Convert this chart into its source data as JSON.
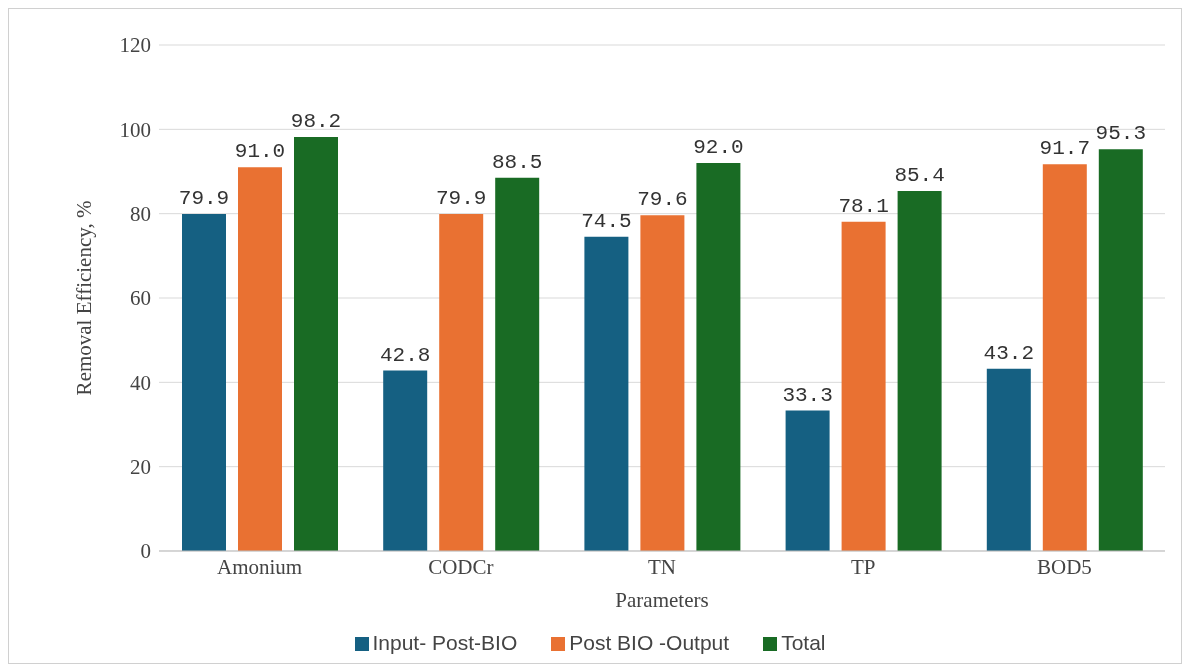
{
  "chart_data": {
    "type": "bar",
    "xlabel": "Parameters",
    "ylabel": "Removal Efficiency, %",
    "categories": [
      "Amonium",
      "CODCr",
      "TN",
      "TP",
      "BOD5"
    ],
    "series": [
      {
        "name": "Input- Post-BIO",
        "color": "#156082",
        "values": [
          79.9,
          42.8,
          74.5,
          33.3,
          43.2
        ],
        "value_labels": [
          "79.9",
          "42.8",
          "74.5",
          "33.3",
          "43.2"
        ]
      },
      {
        "name": "Post BIO -Output",
        "color": "#e97132",
        "values": [
          91.0,
          79.9,
          79.6,
          78.1,
          91.7
        ],
        "value_labels": [
          "91.0",
          "79.9",
          "79.6",
          "78.1",
          "91.7"
        ]
      },
      {
        "name": "Total",
        "color": "#196b24",
        "values": [
          98.2,
          88.5,
          92.0,
          85.4,
          95.3
        ],
        "value_labels": [
          "98.2",
          "88.5",
          "92.0",
          "85.4",
          "95.3"
        ]
      }
    ],
    "ylim": [
      0,
      120
    ],
    "yticks": [
      0,
      20,
      40,
      60,
      80,
      100,
      120
    ],
    "grid": "y",
    "legend": "bottom"
  }
}
